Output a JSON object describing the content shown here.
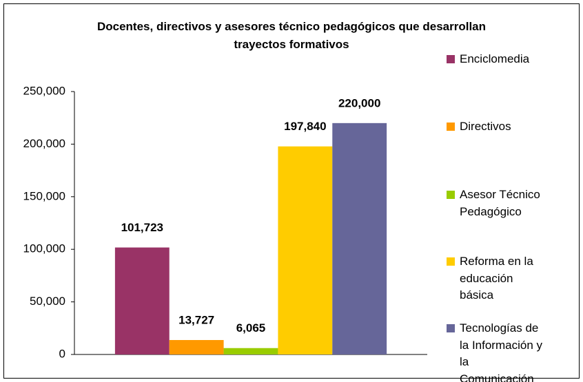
{
  "chart_data": {
    "type": "bar",
    "title": "Docentes, directivos y asesores técnico pedagógicos que desarrollan trayectos formativos",
    "categories": [
      null
    ],
    "series": [
      {
        "name": "Enciclomedia",
        "color": "#993366",
        "values": [
          101723
        ],
        "value_labels": [
          "101,723"
        ]
      },
      {
        "name": "Directivos",
        "color": "#ff9900",
        "values": [
          13727
        ],
        "value_labels": [
          "13,727"
        ]
      },
      {
        "name": "Asesor Técnico Pedagógico",
        "color": "#99cc00",
        "values": [
          6065
        ],
        "value_labels": [
          "6,065"
        ]
      },
      {
        "name": "Reforma en la educación básica",
        "color": "#ffcc00",
        "values": [
          197840
        ],
        "value_labels": [
          "197,840"
        ]
      },
      {
        "name": "Tecnologías de la Información y la Comunicación",
        "color": "#666699",
        "values": [
          220000
        ],
        "value_labels": [
          "220,000"
        ]
      }
    ],
    "ylim": [
      0,
      250000
    ],
    "yticks": [
      0,
      {
        "value": 50000,
        "label": "50,000"
      },
      {
        "value": 100000,
        "label": "100,000"
      },
      {
        "value": 150000,
        "label": "150,000"
      },
      {
        "value": 200000,
        "label": "200,000"
      },
      {
        "value": 250000,
        "label": "250,000"
      }
    ],
    "grid": false,
    "legend": "right"
  }
}
